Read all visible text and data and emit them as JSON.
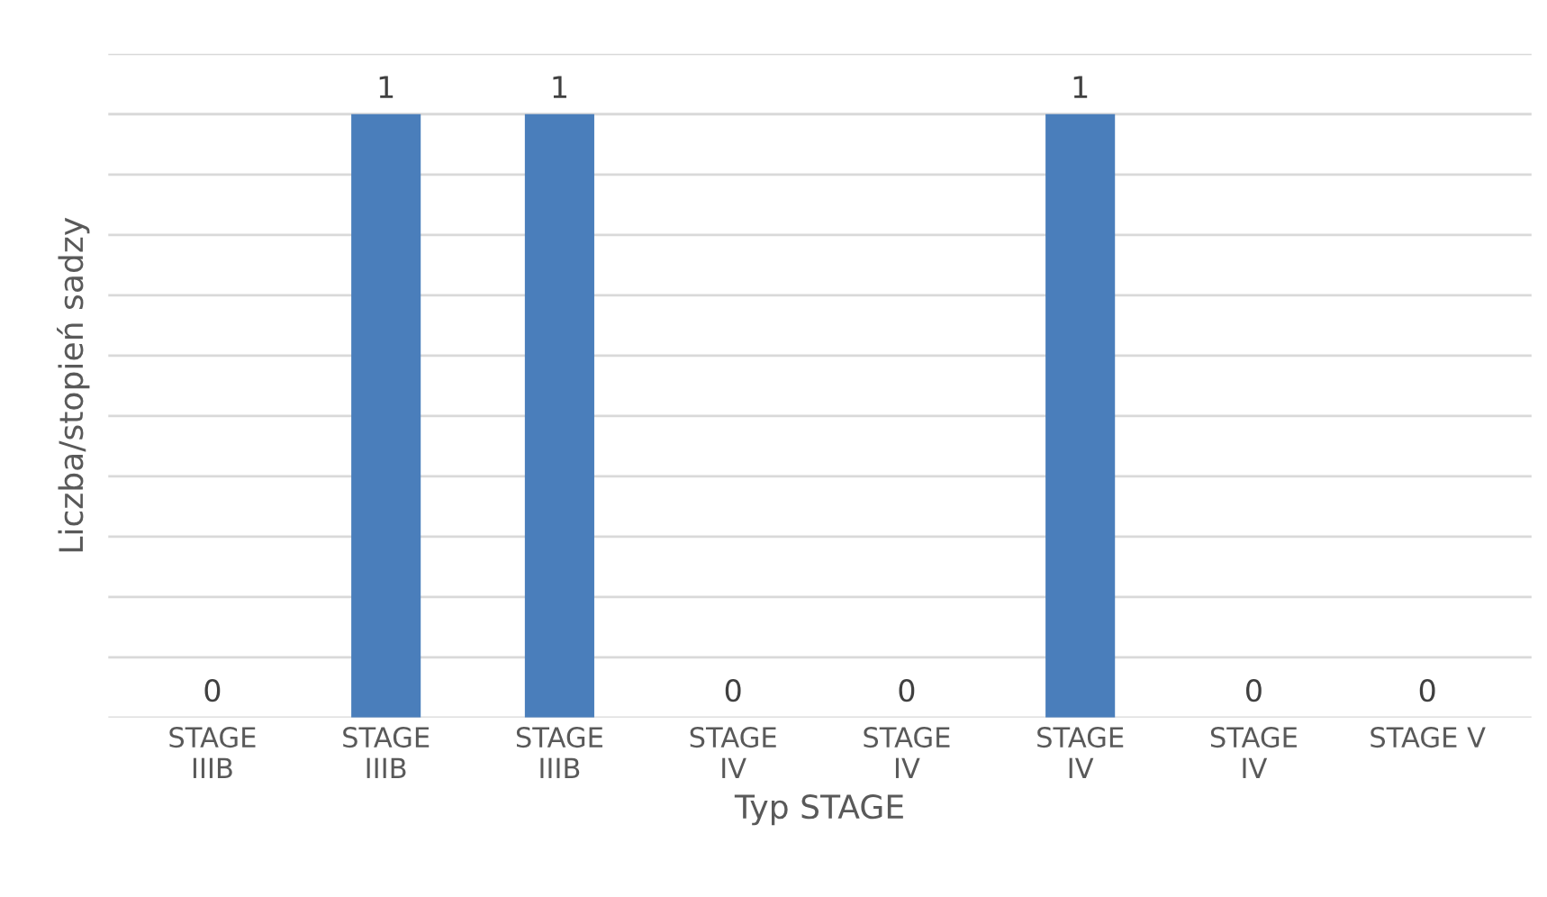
{
  "chart_data": {
    "type": "bar",
    "xlabel": "Typ STAGE",
    "ylabel": "Liczba/stopień sadzy",
    "categories": [
      "STAGE IIIB",
      "STAGE IIIB",
      "STAGE IIIB",
      "STAGE IV",
      "STAGE IV",
      "STAGE IV",
      "STAGE IV",
      "STAGE V"
    ],
    "values": [
      0,
      1,
      1,
      0,
      0,
      1,
      0,
      0
    ],
    "color": "#4a7ebb",
    "ylim": [
      0,
      1.1
    ],
    "yticks": [
      {
        "value": 0,
        "label": null
      },
      {
        "value": 0.1,
        "label": null
      },
      {
        "value": 0.2,
        "label": null
      },
      {
        "value": 0.3,
        "label": null
      },
      {
        "value": 0.4,
        "label": null
      },
      {
        "value": 0.5,
        "label": null
      },
      {
        "value": 0.6,
        "label": null
      },
      {
        "value": 0.7,
        "label": null
      },
      {
        "value": 0.8,
        "label": null
      },
      {
        "value": 0.9,
        "label": null
      },
      {
        "value": 1.0,
        "label": null
      },
      {
        "value": 1.1,
        "label": null
      }
    ],
    "tick_labels": "x",
    "grid": "y",
    "data_labels": true
  }
}
